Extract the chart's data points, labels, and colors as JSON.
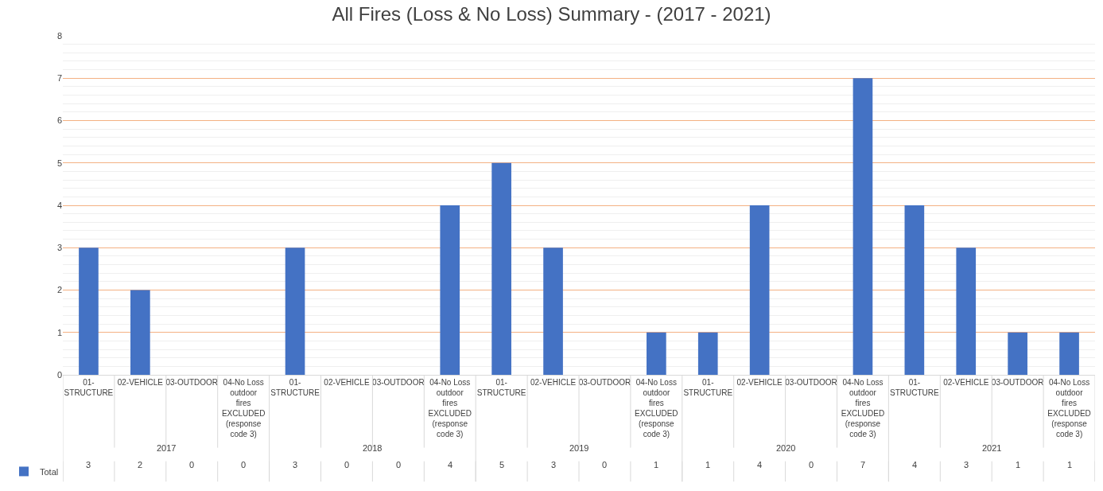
{
  "chart_data": {
    "type": "bar",
    "title": "All Fires (Loss & No Loss) Summary - (2017 - 2021)",
    "categories": [
      "01-STRUCTURE",
      "02-VEHICLE",
      "03-OUTDOOR",
      "04-No Loss outdoor fires EXCLUDED (response code 3)",
      "01-STRUCTURE",
      "02-VEHICLE",
      "03-OUTDOOR",
      "04-No Loss outdoor fires EXCLUDED (response code 3)",
      "01-STRUCTURE",
      "02-VEHICLE",
      "03-OUTDOOR",
      "04-No Loss outdoor fires EXCLUDED (response code 3)",
      "01-STRUCTURE",
      "02-VEHICLE",
      "03-OUTDOOR",
      "04-No Loss outdoor fires EXCLUDED (response code 3)",
      "01-STRUCTURE",
      "02-VEHICLE",
      "03-OUTDOOR",
      "04-No Loss outdoor fires EXCLUDED (response code 3)"
    ],
    "annotations": [
      "2017",
      "2018",
      "2019",
      "2020",
      "2021"
    ],
    "series": [
      {
        "name": "Total",
        "color": "#4472c4",
        "values": [
          3,
          2,
          0,
          0,
          3,
          0,
          0,
          4,
          5,
          3,
          0,
          1,
          1,
          4,
          0,
          7,
          4,
          3,
          1,
          1
        ]
      }
    ],
    "ylim": [
      0,
      8
    ],
    "yticks": [
      0,
      1,
      2,
      3,
      4,
      5,
      6,
      7,
      8
    ],
    "grid": "y",
    "legend": "bottom left",
    "data_labels": true
  }
}
